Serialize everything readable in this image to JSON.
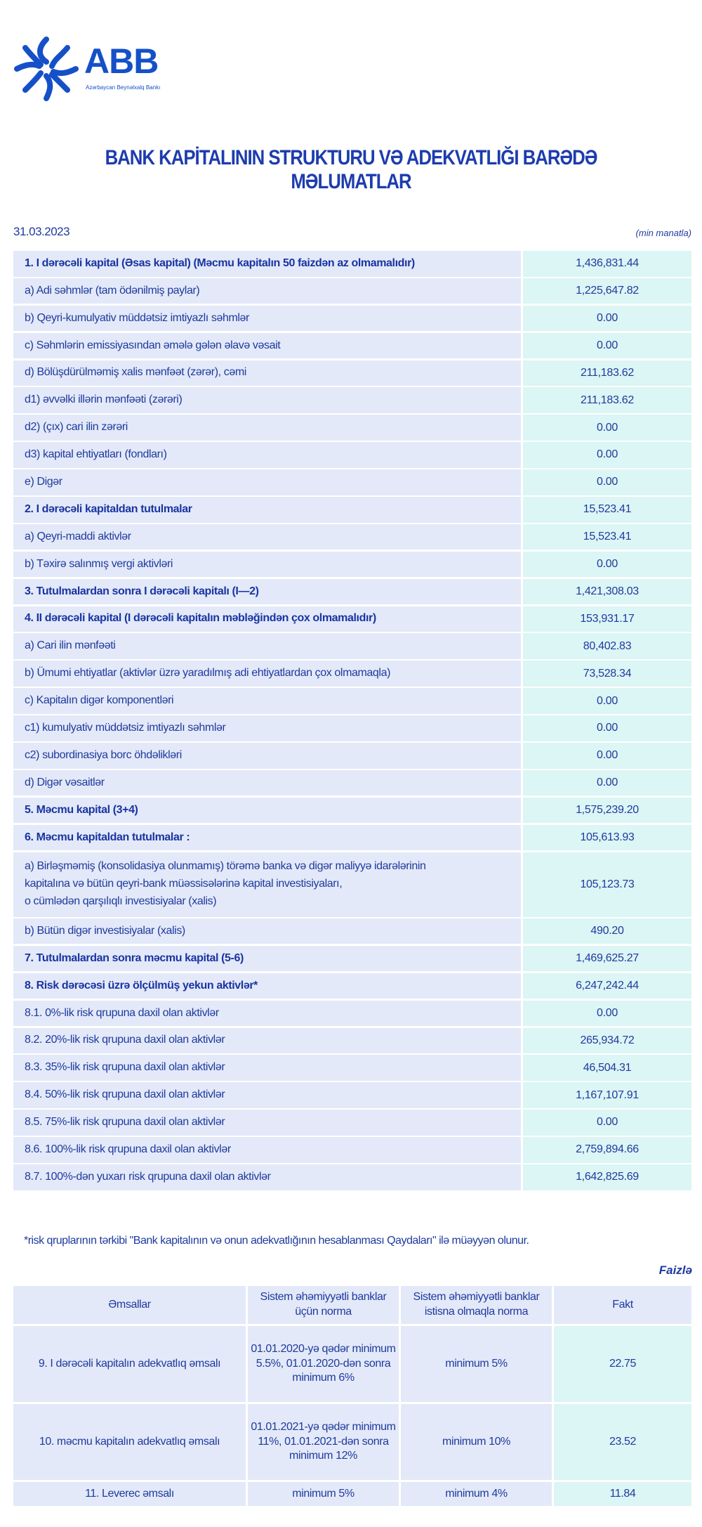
{
  "logo": {
    "text": "ABB",
    "subtitle": "Azərbaycan Beynəlxalq Bankı",
    "color": "#1550c8"
  },
  "title": "BANK KAPİTALININ STRUKTURU VƏ ADEKVATLIĞI BARƏDƏ MƏLUMATLAR",
  "date": "31.03.2023",
  "unit": "(min manatla)",
  "colors": {
    "text": "#1f3a9e",
    "label_bg": "#e3e9f8",
    "value_bg": "#dcf5f5"
  },
  "rows": [
    {
      "label": "1. I dərəcəli kapital (Əsas kapital) (Məcmu kapitalın 50 faizdən  az olmamalıdır)",
      "value": "1,436,831.44"
    },
    {
      "label": "a) Adi səhmlər (tam ödənilmiş paylar)",
      "value": "1,225,647.82"
    },
    {
      "label": "b) Qeyri-kumulyativ müddətsiz imtiyazlı səhmlər",
      "value": "0.00"
    },
    {
      "label": "c) Səhmlərin emissiyasından əmələ gələn  əlavə vəsait",
      "value": "0.00"
    },
    {
      "label": "d)   Bölüşdürülməmiş xalis mənfəət (zərər), cəmi",
      "value": "211,183.62"
    },
    {
      "label": "d1) əvvəlki illərin mənfəəti (zərəri)",
      "value": "211,183.62"
    },
    {
      "label": "d2) (çıx) cari ilin zərəri",
      "value": "0.00"
    },
    {
      "label": "d3) kapital ehtiyatları (fondları)",
      "value": "0.00"
    },
    {
      "label": "e) Digər",
      "value": "0.00"
    },
    {
      "label": "2. I dərəcəli kapitaldan  tutulmalar",
      "value": "15,523.41"
    },
    {
      "label": "a) Qeyri-maddi aktivlər",
      "value": "15,523.41"
    },
    {
      "label": "b) Təxirə salınmış vergi aktivləri",
      "value": "0.00"
    },
    {
      "label": "3. Tutulmalardan  sonra I dərəcəli kapitalı (I—2)",
      "value": "1,421,308.03"
    },
    {
      "label": "4. II dərəcəli  kapital (I dərəcəli  kapitalın  məbləğindən çox olmamalıdır)",
      "value": "153,931.17"
    },
    {
      "label": "a) Cari ilin mənfəəti",
      "value": "80,402.83"
    },
    {
      "label": "b) Ümumi ehtiyatlar (aktivlər üzrə yaradılmış adi ehtiyatlardan çox olmamaqla)",
      "value": "73,528.34"
    },
    {
      "label": "c)  Kapitalın digər komponentləri",
      "value": "0.00"
    },
    {
      "label": "c1) kumulyativ müddətsiz imtiyazlı səhmlər",
      "value": "0.00"
    },
    {
      "label": "c2) subordinasiya borc öhdəlikləri",
      "value": "0.00"
    },
    {
      "label": "d) Digər vəsaitlər",
      "value": "0.00"
    },
    {
      "label": "5. Məcmu kapital (3+4)",
      "value": "1,575,239.20"
    },
    {
      "label": "6. Məcmu kapitaldan tutulmalar :",
      "value": "105,613.93"
    },
    {
      "label": "a) Birləşməmiş (konsolidasiya olunmamış) törəmə banka və digər maliyyə idarələrinin\nkapitalına və bütün qeyri-bank müəssisələrinə kapital investisiyaları,\no cümlədən qarşılıqlı investisiyalar (xalis)",
      "value": "105,123.73"
    },
    {
      "label": "b) Bütün digər investisiyalar (xalis)",
      "value": "490.20"
    },
    {
      "label": "7. Tutulmalardan  sonra məcmu kapital (5-6)",
      "value": "1,469,625.27"
    },
    {
      "label": "8. Risk dərəcəsi üzrə ölçülmüş  yekun aktivlər*",
      "value": "6,247,242.44"
    },
    {
      "label": "8.1. 0%-lik risk qrupuna daxil olan aktivlər",
      "value": "0.00"
    },
    {
      "label": "8.2. 20%-lik risk qrupuna daxil olan aktivlər",
      "value": "265,934.72"
    },
    {
      "label": "8.3. 35%-lik risk qrupuna daxil olan aktivlər",
      "value": "46,504.31"
    },
    {
      "label": "8.4. 50%-lik risk qrupuna daxil olan aktivlər",
      "value": "1,167,107.91"
    },
    {
      "label": "8.5.  75%-lik risk qrupuna daxil olan aktivlər",
      "value": "0.00"
    },
    {
      "label": "8.6.  100%-lik risk qrupuna daxil olan aktivlər",
      "value": "2,759,894.66"
    },
    {
      "label": "8.7. 100%-dən yuxarı risk qrupuna daxil olan aktivlər",
      "value": "1,642,825.69"
    }
  ],
  "footnote": "*risk qruplarının tərkibi \"Bank kapitalının və onun adekvatlığının hesablanması Qaydaları\" ilə müəyyən olunur.",
  "ratio_unit": "Faizlə",
  "ratios": {
    "headers": [
      "Əmsallar",
      "Sistem əhəmiyyətli banklar üçün norma",
      "Sistem əhəmiyyətli banklar istisna olmaqla norma",
      "Fakt"
    ],
    "rows": [
      [
        "9.  I dərəcəli  kapitalın  adekvatlıq əmsalı",
        "01.01.2020-yə qədər minimum 5.5%, 01.01.2020-dən sonra minimum 6%",
        "minimum 5%",
        "22.75"
      ],
      [
        "10. məcmu kapitalın  adekvatlıq  əmsalı",
        "01.01.2021-yə qədər minimum 11%, 01.01.2021-dən sonra minimum 12%",
        "minimum 10%",
        "23.52"
      ],
      [
        "11. Leverec əmsalı",
        "minimum 5%",
        "minimum 4%",
        "11.84"
      ]
    ]
  }
}
